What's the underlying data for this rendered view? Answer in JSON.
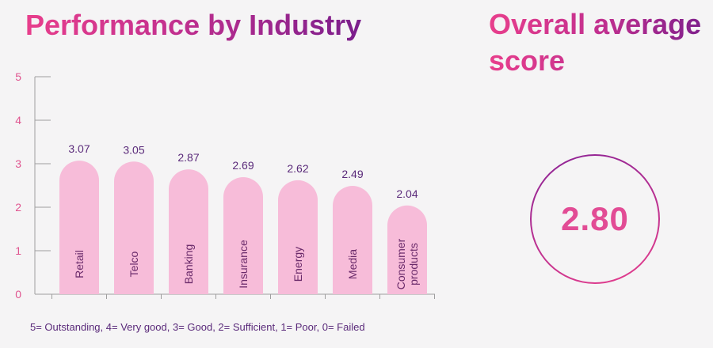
{
  "title": "Performance by Industry",
  "overall": {
    "title": "Overall average score",
    "value": "2.80"
  },
  "footnote": "5= Outstanding, 4= Very good, 3= Good, 2= Sufficient, 1= Poor, 0= Failed",
  "colors": {
    "bar": "#f7bcd9",
    "axis": "#9e9e9e",
    "ring_start": "#8a2296",
    "ring_end": "#e83e8c"
  },
  "chart_data": {
    "type": "bar",
    "categories": [
      "Retail",
      "Telco",
      "Banking",
      "Insurance",
      "Energy",
      "Media",
      "Consumer products"
    ],
    "values": [
      3.07,
      3.05,
      2.87,
      2.69,
      2.62,
      2.49,
      2.04
    ],
    "value_labels": [
      "3.07",
      "3.05",
      "2.87",
      "2.69",
      "2.62",
      "2.49",
      "2.04"
    ],
    "yticks": [
      0,
      1,
      2,
      3,
      4,
      5
    ],
    "ylim": [
      0,
      5
    ],
    "xlabel": "",
    "ylabel": "",
    "grid": false,
    "legend": "none"
  }
}
